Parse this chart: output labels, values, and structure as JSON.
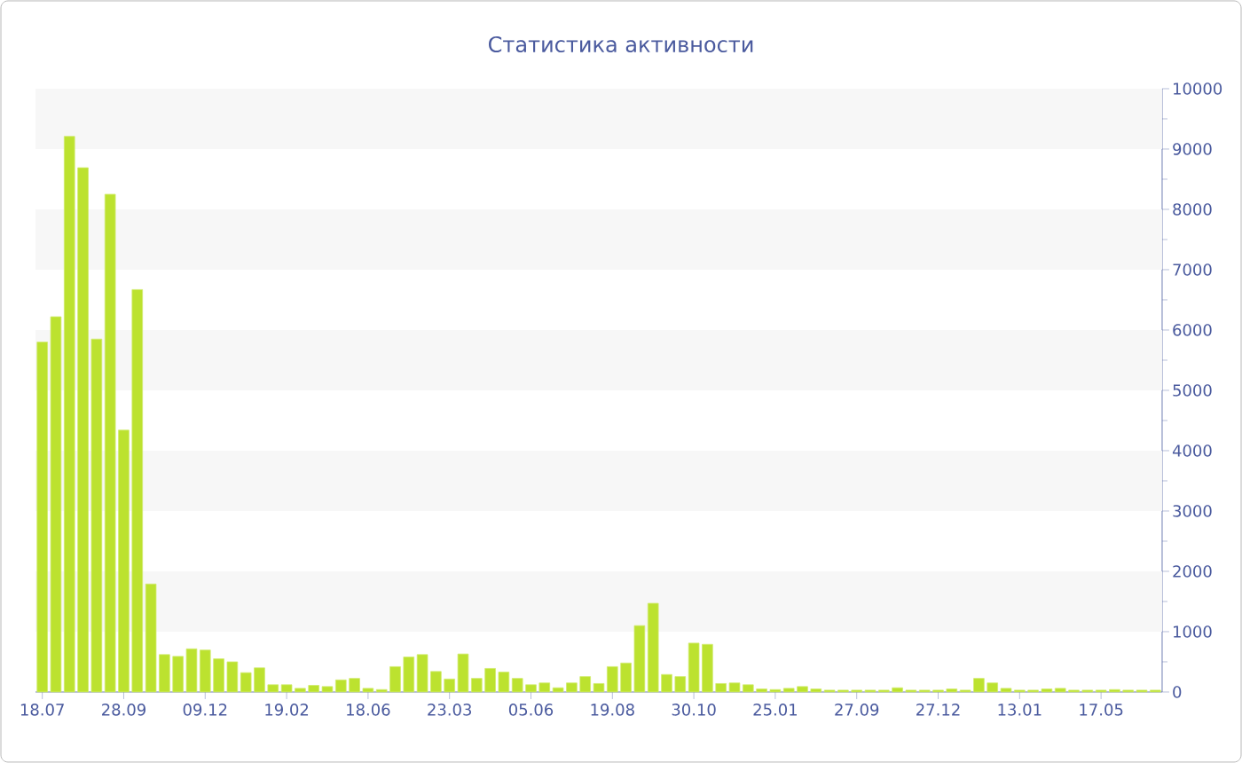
{
  "chart_data": {
    "type": "bar",
    "title": "Статистика активности",
    "categories": [
      "18.07",
      null,
      null,
      null,
      null,
      null,
      "28.09",
      null,
      null,
      null,
      null,
      null,
      "09.12",
      null,
      null,
      null,
      null,
      null,
      "19.02",
      null,
      null,
      null,
      null,
      null,
      "18.06",
      null,
      null,
      null,
      null,
      null,
      "23.03",
      null,
      null,
      null,
      null,
      null,
      "05.06",
      null,
      null,
      null,
      null,
      null,
      "19.08",
      null,
      null,
      null,
      null,
      null,
      "30.10",
      null,
      null,
      null,
      null,
      null,
      "25.01",
      null,
      null,
      null,
      null,
      null,
      "27.09",
      null,
      null,
      null,
      null,
      null,
      "27.12",
      null,
      null,
      null,
      null,
      null,
      "13.01",
      null,
      null,
      null,
      null,
      null,
      "17.05",
      null,
      null,
      null,
      null
    ],
    "values": [
      5800,
      6220,
      9210,
      8690,
      5850,
      8250,
      4340,
      6670,
      1790,
      620,
      590,
      715,
      695,
      550,
      500,
      320,
      400,
      120,
      120,
      60,
      110,
      90,
      200,
      225,
      60,
      40,
      420,
      580,
      620,
      340,
      215,
      630,
      225,
      390,
      330,
      225,
      120,
      150,
      70,
      150,
      255,
      140,
      420,
      480,
      1100,
      1470,
      290,
      255,
      810,
      790,
      140,
      150,
      120,
      50,
      40,
      60,
      90,
      50,
      30,
      30,
      30,
      30,
      30,
      70,
      30,
      30,
      30,
      50,
      30,
      225,
      150,
      60,
      30,
      30,
      50,
      60,
      30,
      30,
      30,
      40,
      30,
      30,
      30
    ],
    "color": "#bce22f",
    "ylim": [
      0,
      10000
    ],
    "yticks": [
      0,
      1000,
      2000,
      3000,
      4000,
      5000,
      6000,
      7000,
      8000,
      9000,
      10000
    ],
    "bands": [
      {
        "axis": "y",
        "from": 1000,
        "to": 2000,
        "color": "#f7f7f7"
      },
      {
        "axis": "y",
        "from": 3000,
        "to": 4000,
        "color": "#f7f7f7"
      },
      {
        "axis": "y",
        "from": 5000,
        "to": 6000,
        "color": "#f7f7f7"
      },
      {
        "axis": "y",
        "from": 7000,
        "to": 8000,
        "color": "#f7f7f7"
      },
      {
        "axis": "y",
        "from": 9000,
        "to": 10000,
        "color": "#f7f7f7"
      }
    ]
  }
}
